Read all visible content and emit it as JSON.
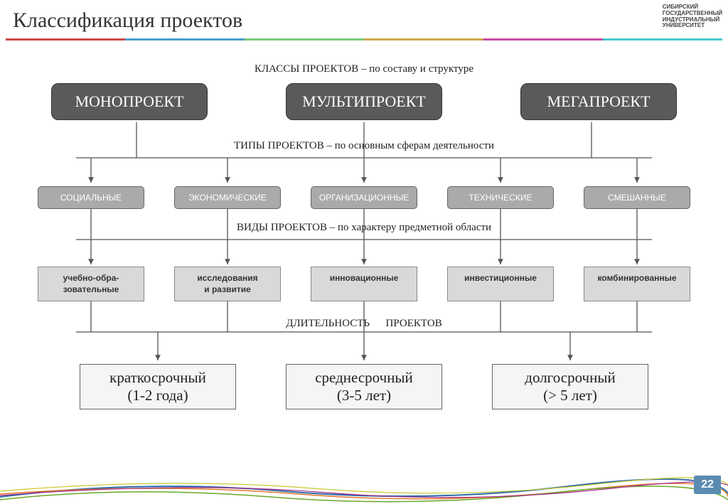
{
  "title": "Классификация проектов",
  "logo": {
    "l1": "СИБИРСКИЙ",
    "l2": "ГОСУДАРСТВЕННЫЙ",
    "l3": "ИНДУСТРИАЛЬНЫЙ",
    "l4": "УНИВЕРСИТЕТ"
  },
  "stripe_colors": [
    "#c94a4a",
    "#4aa0c9",
    "#7ac97a",
    "#c9a94a",
    "#c94aa0",
    "#4ac9c9"
  ],
  "labels": {
    "classes": "КЛАССЫ ПРОЕКТОВ – по составу и структуре",
    "types": "ТИПЫ  ПРОЕКТОВ – по основным сферам деятельности",
    "kinds": "ВИДЫ  ПРОЕКТОВ – по характеру предметной области",
    "duration_left": "ДЛИТЕЛЬНОСТЬ",
    "duration_right": "ПРОЕКТОВ"
  },
  "row1": [
    "МОНОПРОЕКТ",
    "МУЛЬТИПРОЕКТ",
    "МЕГАПРОЕКТ"
  ],
  "row2": [
    "СОЦИАЛЬНЫЕ",
    "ЭКОНОМИЧЕСКИЕ",
    "ОРГАНИЗАЦИОННЫЕ",
    "ТЕХНИЧЕСКИЕ",
    "СМЕШАННЫЕ"
  ],
  "row3": [
    "учебно-обра-\nзовательные",
    "исследования\nи развитие",
    "инновационные",
    "инвестиционные",
    "комбинированные"
  ],
  "row4": [
    {
      "t1": "краткосрочный",
      "t2": "(1-2 года)"
    },
    {
      "t1": "среднесрочный",
      "t2": "(3-5 лет)"
    },
    {
      "t1": "долгосрочный",
      "t2": "(> 5 лет)"
    }
  ],
  "page_number": "22",
  "arrow_color": "#555555",
  "wave_colors": [
    "#2a6aa8",
    "#e07830",
    "#6aa82a",
    "#c9c930",
    "#a82a8a"
  ]
}
